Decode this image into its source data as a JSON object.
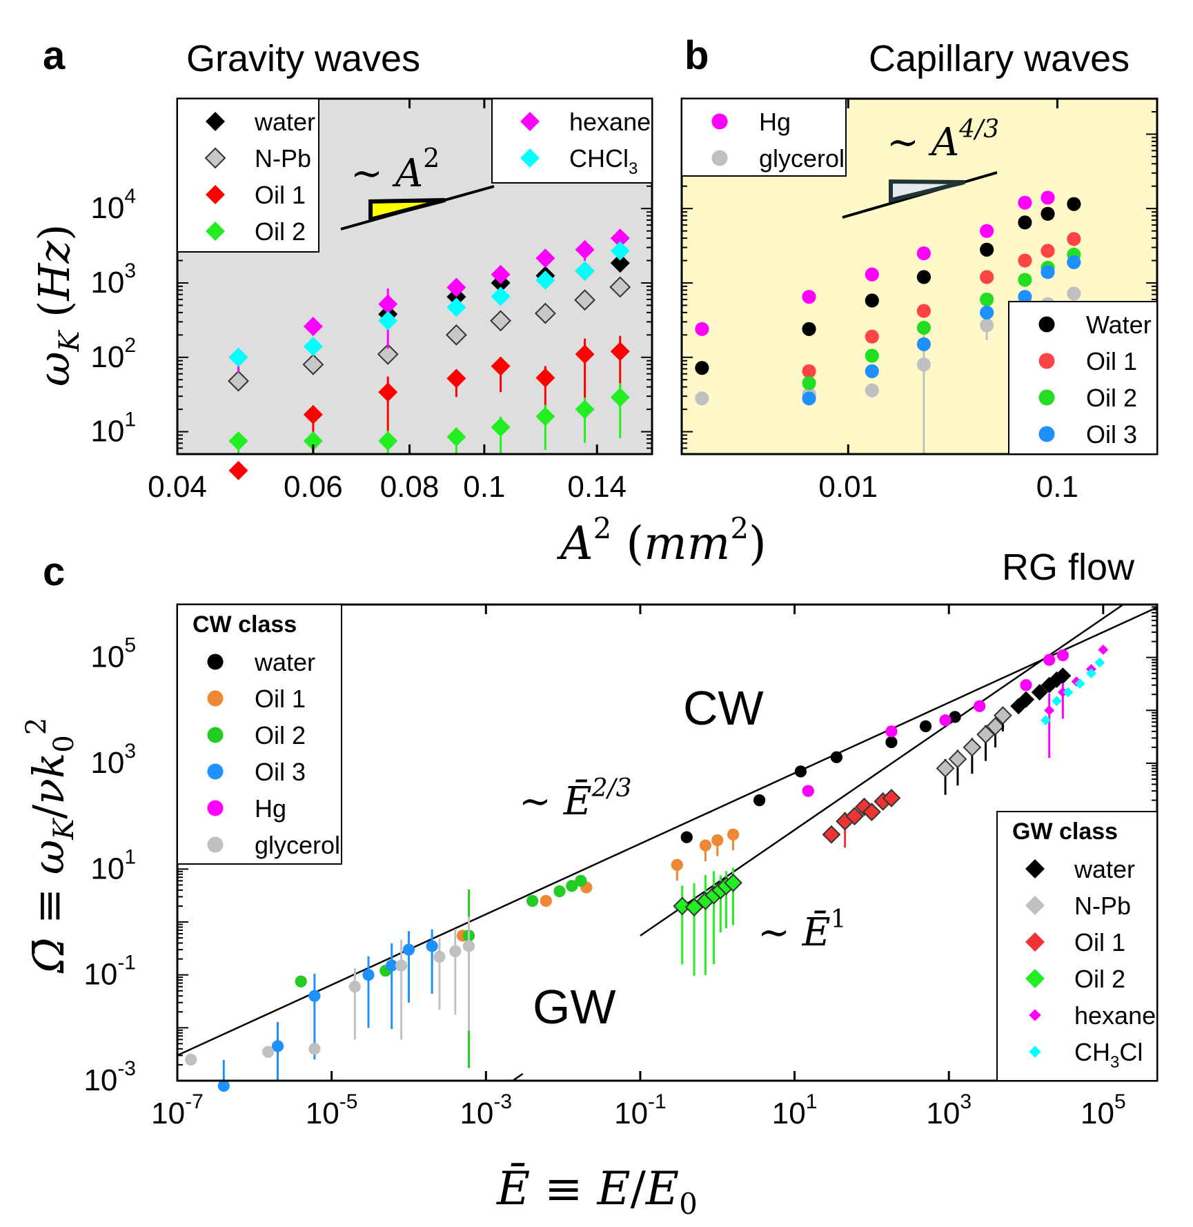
{
  "chart_data": [
    {
      "id": "a",
      "type": "scatter",
      "letter": "a",
      "title": "Gravity waves",
      "xscale": "log",
      "yscale": "log",
      "xlim": [
        0.04,
        0.165
      ],
      "ylim": [
        5,
        300000
      ],
      "xticks": [
        0.04,
        0.06,
        0.08,
        0.1,
        0.14
      ],
      "xtick_labels": [
        "0.04",
        "0.06",
        "0.08",
        "0.1",
        "0.14"
      ],
      "yticks": [
        10,
        100,
        1000,
        10000
      ],
      "ytick_labels": [
        [
          "10",
          "1"
        ],
        [
          "10",
          "2"
        ],
        [
          "10",
          "3"
        ],
        [
          "10",
          "4"
        ]
      ],
      "ylabel": "ω_K (Hz)",
      "background": "#dedede",
      "slope_label": "∼ A²",
      "legends": [
        {
          "position": "top-left",
          "entries": [
            {
              "label": "water",
              "marker": "diamond",
              "color": "#000000"
            },
            {
              "label": "N-Pb",
              "marker": "diamond-open",
              "color": "#c8c8c8"
            },
            {
              "label": "Oil 1",
              "marker": "diamond",
              "color": "#ff0000"
            },
            {
              "label": "Oil 2",
              "marker": "diamond",
              "color": "#22ee22"
            }
          ]
        },
        {
          "position": "top-right",
          "entries": [
            {
              "label": "hexane",
              "marker": "diamond",
              "color": "#ff00ff"
            },
            {
              "label": "CHCl3",
              "sub_base": "CHCl",
              "sub": "3",
              "marker": "diamond",
              "color": "#00ffff"
            }
          ]
        }
      ],
      "series": [
        {
          "name": "water",
          "marker": "diamond",
          "color": "#000000",
          "x": [
            0.075,
            0.092,
            0.105,
            0.12,
            0.135,
            0.15
          ],
          "y": [
            380,
            650,
            1000,
            1250,
            1450,
            1850
          ]
        },
        {
          "name": "N-Pb",
          "marker": "diamond-open",
          "color": "#c8c8c8",
          "x": [
            0.048,
            0.06,
            0.075,
            0.092,
            0.105,
            0.12,
            0.135,
            0.15
          ],
          "y": [
            48,
            80,
            110,
            200,
            310,
            390,
            590,
            880
          ]
        },
        {
          "name": "Oil 1",
          "marker": "diamond",
          "color": "#ff0000",
          "x": [
            0.048,
            0.06,
            0.075,
            0.092,
            0.105,
            0.12,
            0.135,
            0.15
          ],
          "y": [
            3,
            17,
            34,
            52,
            76,
            53,
            110,
            120
          ],
          "err": [
            0.8,
            0.25,
            0.6,
            0.25,
            0.35,
            0.45,
            0.6,
            0.6
          ]
        },
        {
          "name": "Oil 2",
          "marker": "diamond",
          "color": "#22ee22",
          "x": [
            0.048,
            0.06,
            0.075,
            0.092,
            0.105,
            0.12,
            0.135,
            0.15
          ],
          "y": [
            7.5,
            7.5,
            7.5,
            8.5,
            11.5,
            16,
            20,
            29
          ],
          "err": [
            0.3,
            0.3,
            0.4,
            0.35,
            0.4,
            0.45,
            0.45,
            0.55
          ]
        },
        {
          "name": "hexane",
          "marker": "diamond",
          "color": "#ff00ff",
          "x": [
            0.048,
            0.06,
            0.075,
            0.092,
            0.105,
            0.12,
            0.135,
            0.15
          ],
          "y": [
            100,
            260,
            520,
            870,
            1300,
            2150,
            2800,
            4000
          ],
          "err": [
            0.2,
            0.12,
            0.6,
            0.1,
            0.1,
            0.1,
            0.15,
            0.12
          ]
        },
        {
          "name": "CHCl3",
          "marker": "diamond",
          "color": "#00ffff",
          "x": [
            0.048,
            0.06,
            0.075,
            0.092,
            0.105,
            0.12,
            0.135,
            0.15
          ],
          "y": [
            100,
            140,
            310,
            470,
            660,
            1090,
            1450,
            2700
          ]
        }
      ]
    },
    {
      "id": "b",
      "type": "scatter",
      "letter": "b",
      "title": "Capillary waves",
      "xscale": "log",
      "yscale": "log",
      "xlim": [
        0.0016,
        0.3
      ],
      "ylim": [
        5,
        300000
      ],
      "xticks": [
        0.01,
        0.1
      ],
      "xtick_labels": [
        "0.01",
        "0.1"
      ],
      "background": "#fff8c8",
      "slope_label": "∼ A^4/3",
      "legends": [
        {
          "position": "top-left",
          "entries": [
            {
              "label": "Hg",
              "marker": "circle",
              "color": "#ff00ff"
            },
            {
              "label": "glycerol",
              "marker": "circle",
              "color": "#c0c0c0"
            }
          ]
        },
        {
          "position": "bottom-right",
          "entries": [
            {
              "label": "Water",
              "marker": "circle",
              "color": "#000000"
            },
            {
              "label": "Oil 1",
              "marker": "circle",
              "color": "#ff4444"
            },
            {
              "label": "Oil 2",
              "marker": "circle",
              "color": "#22dd22"
            },
            {
              "label": "Oil 3",
              "marker": "circle",
              "color": "#1e90ff"
            }
          ]
        }
      ],
      "series": [
        {
          "name": "Hg",
          "marker": "circle",
          "color": "#ff00ff",
          "x": [
            0.002,
            0.0065,
            0.013,
            0.023,
            0.046,
            0.07,
            0.09
          ],
          "y": [
            240,
            650,
            1300,
            2500,
            5000,
            12000,
            14000
          ]
        },
        {
          "name": "glycerol",
          "marker": "circle",
          "color": "#c0c0c0",
          "x": [
            0.002,
            0.0065,
            0.013,
            0.023,
            0.046,
            0.07,
            0.09,
            0.12
          ],
          "y": [
            28,
            32,
            36,
            80,
            270,
            370,
            520,
            720
          ],
          "err": [
            0,
            0.15,
            0.1,
            1.3,
            0.2,
            0.2,
            0.2,
            0.2
          ]
        },
        {
          "name": "Water",
          "marker": "circle",
          "color": "#000000",
          "x": [
            0.002,
            0.0065,
            0.013,
            0.023,
            0.046,
            0.07,
            0.09,
            0.12
          ],
          "y": [
            72,
            240,
            580,
            1200,
            2800,
            6500,
            8500,
            11500
          ]
        },
        {
          "name": "Oil 1",
          "marker": "circle",
          "color": "#ff4444",
          "x": [
            0.0065,
            0.013,
            0.023,
            0.046,
            0.07,
            0.09,
            0.12
          ],
          "y": [
            65,
            190,
            420,
            1200,
            2000,
            2700,
            3900
          ]
        },
        {
          "name": "Oil 2",
          "marker": "circle",
          "color": "#22dd22",
          "x": [
            0.0065,
            0.013,
            0.023,
            0.046,
            0.07,
            0.09,
            0.12
          ],
          "y": [
            45,
            105,
            250,
            600,
            1100,
            1600,
            2400
          ]
        },
        {
          "name": "Oil 3",
          "marker": "circle",
          "color": "#1e90ff",
          "x": [
            0.0065,
            0.013,
            0.023,
            0.046,
            0.07,
            0.09,
            0.12
          ],
          "y": [
            28,
            65,
            150,
            400,
            650,
            1400,
            1900
          ]
        }
      ]
    },
    {
      "id": "c",
      "type": "scatter",
      "letter": "c",
      "title": "RG flow",
      "xscale": "log",
      "yscale": "log",
      "xlim": [
        1e-07,
        500000.0
      ],
      "ylim": [
        0.001,
        1000000.0
      ],
      "xticks": [
        1e-07,
        1e-05,
        0.001,
        0.1,
        10.0,
        1000.0,
        100000.0
      ],
      "xtick_labels": [
        [
          "10",
          "-7"
        ],
        [
          "10",
          "-5"
        ],
        [
          "10",
          "-3"
        ],
        [
          "10",
          "-1"
        ],
        [
          "10",
          "1"
        ],
        [
          "10",
          "3"
        ],
        [
          "10",
          "5"
        ]
      ],
      "yticks": [
        0.001,
        0.1,
        10.0,
        1000.0,
        100000.0
      ],
      "ytick_labels": [
        [
          "10",
          "-3"
        ],
        [
          "10",
          "-1"
        ],
        [
          "10",
          "1"
        ],
        [
          "10",
          "3"
        ],
        [
          "10",
          "5"
        ]
      ],
      "xlabel": "Ē ≡ E/E0",
      "ylabel": "Ω̄ ≡ ω_K/νk0²",
      "region_labels": [
        "CW",
        "GW"
      ],
      "fit_labels": [
        "∼ Ē^2/3",
        "∼ Ē^1"
      ],
      "fits": [
        {
          "name": "CW fit",
          "exponent": 0.6667,
          "x_range": [
            1e-07,
            500000.0
          ],
          "y_at_1": 140
        },
        {
          "name": "GW fit",
          "exponent": 1,
          "x_range": [
            0.1,
            500000.0
          ],
          "y_at_1": 5.5
        },
        {
          "name": "GW fit lower",
          "exponent": 1,
          "x_range": [
            0.0005,
            0.003
          ],
          "y_at_1": 0.45
        }
      ],
      "legends": [
        {
          "title": "CW class",
          "position": "top-left",
          "entries": [
            {
              "label": "water",
              "marker": "circle",
              "color": "#000000"
            },
            {
              "label": "Oil 1",
              "marker": "circle",
              "color": "#ee8833"
            },
            {
              "label": "Oil 2",
              "marker": "circle",
              "color": "#22cc22"
            },
            {
              "label": "Oil 3",
              "marker": "circle",
              "color": "#1e90ff"
            },
            {
              "label": "Hg",
              "marker": "circle",
              "color": "#ff00ff"
            },
            {
              "label": "glycerol",
              "marker": "circle",
              "color": "#c0c0c0"
            }
          ]
        },
        {
          "title": "GW class",
          "position": "bottom-right",
          "entries": [
            {
              "label": "water",
              "marker": "diamond",
              "color": "#000000"
            },
            {
              "label": "N-Pb",
              "marker": "diamond",
              "color": "#c0c0c0"
            },
            {
              "label": "Oil 1",
              "marker": "diamond",
              "color": "#ee3333"
            },
            {
              "label": "Oil 2",
              "marker": "diamond",
              "color": "#22ee22"
            },
            {
              "label": "hexane",
              "marker": "diamond-small",
              "color": "#ff00ff"
            },
            {
              "label": "CH3Cl",
              "sub_base": "CH",
              "sub": "3",
              "sub_tail": "Cl",
              "marker": "diamond-small",
              "color": "#00ffff"
            }
          ]
        }
      ],
      "series": [
        {
          "name": "CW water",
          "marker": "circle",
          "color": "#000000",
          "x": [
            0.4,
            3.5,
            12,
            35,
            180,
            500,
            1200
          ],
          "y": [
            40,
            200,
            700,
            1300,
            2500,
            5000,
            7500
          ]
        },
        {
          "name": "CW Oil 1",
          "marker": "circle",
          "color": "#ee8833",
          "x": [
            0.0005,
            0.006,
            0.02,
            0.3,
            0.7,
            1.0,
            1.6
          ],
          "y": [
            0.55,
            2.5,
            4.5,
            12,
            28,
            35,
            45
          ],
          "err": [
            0,
            0,
            0,
            0.3,
            0.3,
            0.3,
            0.3
          ]
        },
        {
          "name": "CW Oil 2",
          "marker": "circle",
          "color": "#22cc22",
          "x": [
            4e-06,
            5e-05,
            0.0006,
            0.004,
            0.009,
            0.013,
            0.017
          ],
          "y": [
            0.075,
            0.12,
            0.55,
            2.5,
            3.8,
            4.8,
            6
          ],
          "err": [
            0,
            0,
            2.5,
            0,
            0,
            0,
            0
          ]
        },
        {
          "name": "CW Oil 3",
          "marker": "circle",
          "color": "#1e90ff",
          "x": [
            4e-07,
            2e-06,
            6e-06,
            3e-05,
            6e-05,
            0.0001,
            0.0002
          ],
          "y": [
            0.0008,
            0.0045,
            0.04,
            0.1,
            0.15,
            0.3,
            0.35
          ],
          "err": [
            1.4,
            1.3,
            1.2,
            1.0,
            1.2,
            1.0,
            0.9
          ]
        },
        {
          "name": "CW Hg",
          "marker": "circle",
          "color": "#ff00ff",
          "x": [
            15,
            180,
            900,
            2500,
            10000,
            20000,
            30000
          ],
          "y": [
            300,
            4000,
            6500,
            12000,
            30000,
            90000,
            110000
          ]
        },
        {
          "name": "CW glycerol",
          "marker": "circle",
          "color": "#c0c0c0",
          "x": [
            1.5e-07,
            1.5e-06,
            6e-06,
            2e-05,
            8e-05,
            0.00025,
            0.0004,
            0.0006
          ],
          "y": [
            0.0025,
            0.0035,
            0.004,
            0.06,
            0.15,
            0.22,
            0.28,
            0.35
          ],
          "err": [
            0,
            0,
            0,
            1.0,
            1.4,
            1.0,
            1.2,
            1.6
          ]
        },
        {
          "name": "GW water",
          "marker": "diamond",
          "color": "#000000",
          "x": [
            8000,
            10000,
            15000,
            20000,
            25000,
            30000
          ],
          "y": [
            12000,
            16000,
            22000,
            30000,
            38000,
            45000
          ]
        },
        {
          "name": "GW N-Pb",
          "marker": "diamond",
          "color": "#c0c0c0",
          "x": [
            900,
            1300,
            2000,
            3000,
            4000,
            5000
          ],
          "y": [
            800,
            1200,
            2000,
            3500,
            5000,
            8000
          ],
          "err": [
            0.5,
            0.5,
            0.5,
            0.5,
            0.4,
            0.3
          ]
        },
        {
          "name": "GW Oil 1",
          "marker": "diamond",
          "color": "#ee3333",
          "x": [
            30,
            45,
            60,
            80,
            100,
            140,
            180
          ],
          "y": [
            45,
            80,
            100,
            150,
            120,
            190,
            220
          ],
          "err": [
            0,
            0.5,
            0,
            0,
            0,
            0,
            0
          ]
        },
        {
          "name": "GW Oil 2",
          "marker": "diamond",
          "color": "#22ee22",
          "x": [
            0.35,
            0.5,
            0.7,
            0.9,
            1.1,
            1.3,
            1.6
          ],
          "y": [
            2,
            1.9,
            2.5,
            3.2,
            4,
            4.8,
            5.5
          ],
          "err": [
            1.1,
            1.3,
            1.4,
            1.3,
            0.8,
            0.8,
            0.8
          ]
        },
        {
          "name": "GW hexane",
          "marker": "diamond-small",
          "color": "#ff00ff",
          "x": [
            20000,
            30000,
            45000,
            70000,
            100000
          ],
          "y": [
            10000,
            22000,
            35000,
            60000,
            140000
          ],
          "err": [
            0.9,
            0.5,
            0,
            0,
            0
          ]
        },
        {
          "name": "GW CH3Cl",
          "marker": "diamond-small",
          "color": "#00ffff",
          "x": [
            18000,
            25000,
            35000,
            50000,
            70000,
            90000
          ],
          "y": [
            6500,
            15000,
            22000,
            32000,
            50000,
            80000
          ]
        }
      ]
    }
  ],
  "shared_xlabel": "A² (mm²)",
  "shared_xlabel_base": "A",
  "shared_xlabel_unit": "mm"
}
